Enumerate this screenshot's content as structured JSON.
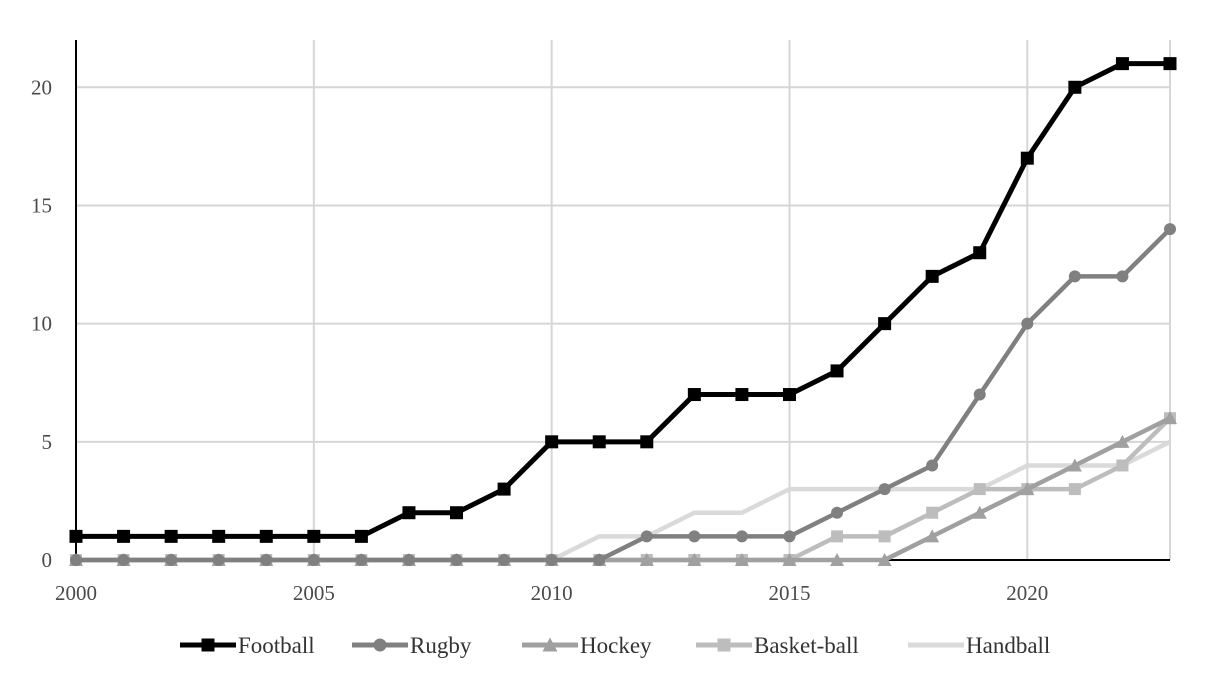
{
  "chart_data": {
    "type": "line",
    "title": "",
    "xlabel": "",
    "ylabel": "",
    "xlim": [
      2000,
      2023
    ],
    "ylim": [
      0,
      22
    ],
    "x_ticks": [
      2000,
      2005,
      2010,
      2015,
      2020
    ],
    "y_ticks": [
      0,
      5,
      10,
      15,
      20
    ],
    "grid": true,
    "legend_position": "bottom",
    "x": [
      2000,
      2001,
      2002,
      2003,
      2004,
      2005,
      2006,
      2007,
      2008,
      2009,
      2010,
      2011,
      2012,
      2013,
      2014,
      2015,
      2016,
      2017,
      2018,
      2019,
      2020,
      2021,
      2022,
      2023
    ],
    "series": [
      {
        "name": "Football",
        "color": "#000000",
        "marker": "square",
        "values": [
          1,
          1,
          1,
          1,
          1,
          1,
          1,
          2,
          2,
          3,
          5,
          5,
          5,
          7,
          7,
          7,
          8,
          10,
          12,
          13,
          17,
          20,
          21,
          21
        ]
      },
      {
        "name": "Rugby",
        "color": "#808080",
        "marker": "circle",
        "values": [
          0,
          0,
          0,
          0,
          0,
          0,
          0,
          0,
          0,
          0,
          0,
          0,
          1,
          1,
          1,
          1,
          2,
          3,
          4,
          7,
          10,
          12,
          12,
          14
        ]
      },
      {
        "name": "Hockey",
        "color": "#a0a0a0",
        "marker": "triangle",
        "values": [
          0,
          0,
          0,
          0,
          0,
          0,
          0,
          0,
          0,
          0,
          0,
          0,
          0,
          0,
          0,
          0,
          0,
          0,
          1,
          2,
          3,
          4,
          5,
          6
        ]
      },
      {
        "name": "Basket-ball",
        "color": "#bdbdbd",
        "marker": "square",
        "values": [
          0,
          0,
          0,
          0,
          0,
          0,
          0,
          0,
          0,
          0,
          0,
          0,
          0,
          0,
          0,
          0,
          1,
          1,
          2,
          3,
          3,
          3,
          4,
          6
        ]
      },
      {
        "name": "Handball",
        "color": "#dadada",
        "marker": "none",
        "values": [
          0,
          0,
          0,
          0,
          0,
          0,
          0,
          0,
          0,
          0,
          0,
          1,
          1,
          2,
          2,
          3,
          3,
          3,
          3,
          3,
          4,
          4,
          4,
          5
        ]
      }
    ]
  }
}
